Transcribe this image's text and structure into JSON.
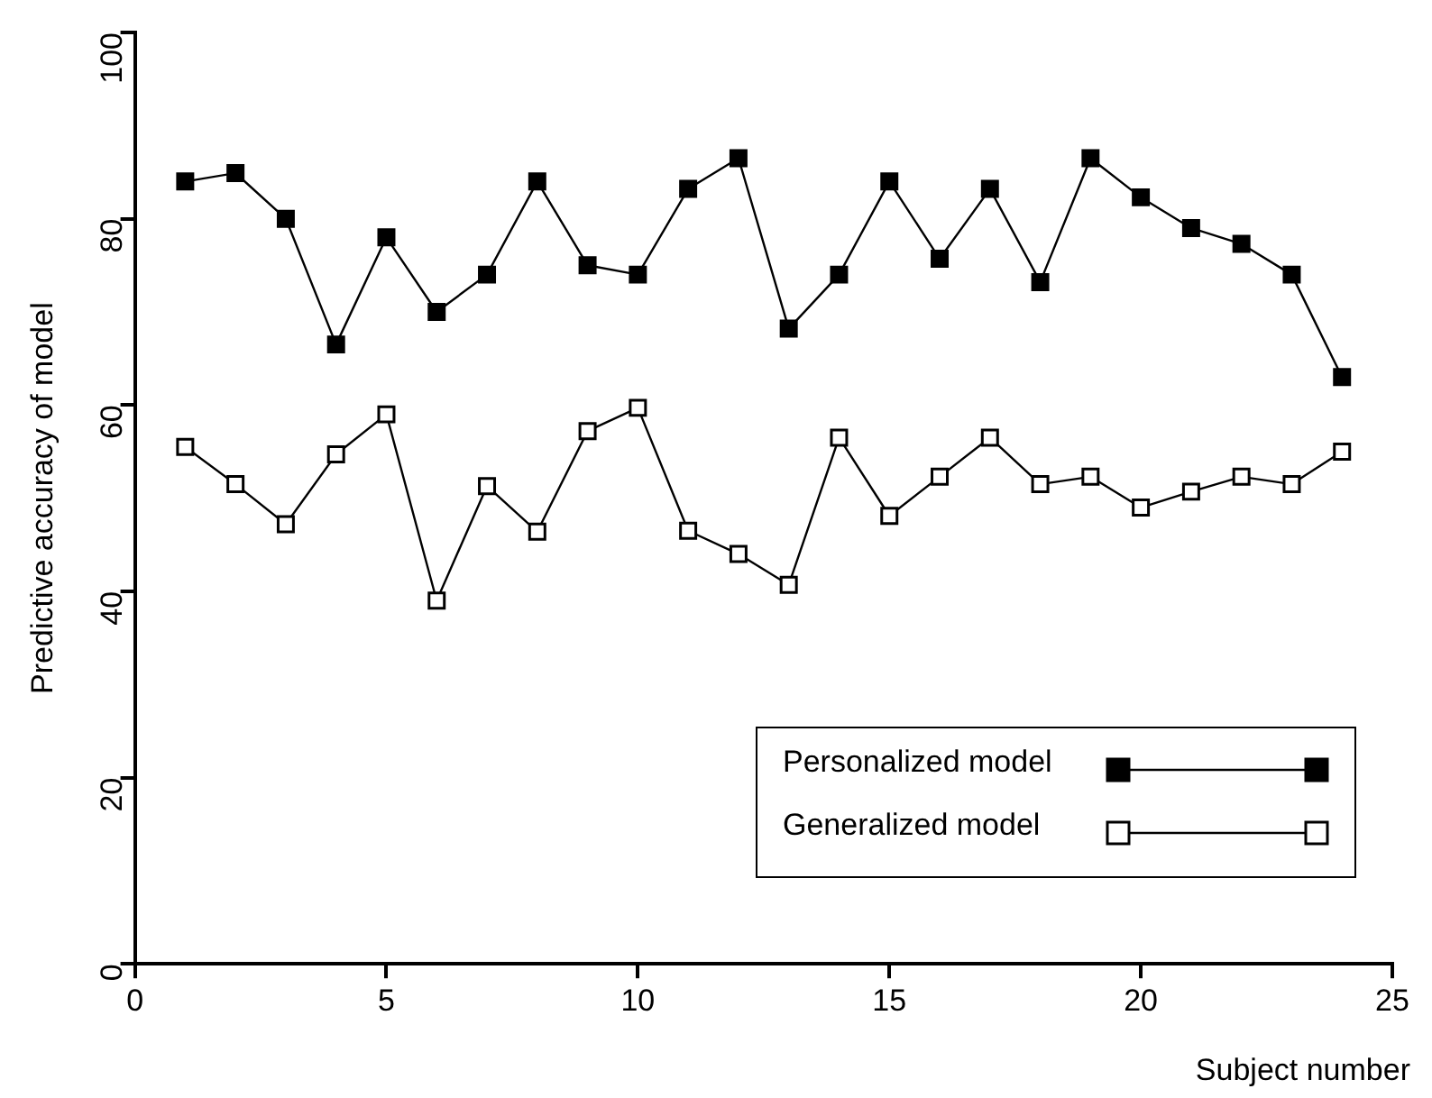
{
  "chart_data": {
    "type": "line",
    "xlabel": "Subject number",
    "ylabel": "Predictive accuracy of model",
    "x": [
      1,
      2,
      3,
      4,
      5,
      6,
      7,
      8,
      9,
      10,
      11,
      12,
      13,
      14,
      15,
      16,
      17,
      18,
      19,
      20,
      21,
      22,
      23,
      24
    ],
    "series": [
      {
        "name": "Personalized model",
        "color": "#000000",
        "marker": "square",
        "values": [
          84,
          84.9,
          80,
          66.5,
          78,
          70,
          74,
          84,
          75,
          74,
          83.2,
          86.5,
          68.2,
          74,
          84,
          75.7,
          83.2,
          73.2,
          86.5,
          82.3,
          79,
          77.3,
          74,
          63
        ]
      },
      {
        "name": "Generalized model",
        "color": "#ffffff",
        "marker": "square",
        "values": [
          55.5,
          51.5,
          47.2,
          54.7,
          59,
          39,
          51.3,
          46.4,
          57.2,
          59.7,
          46.5,
          44,
          40.7,
          56.5,
          48.1,
          52.3,
          56.5,
          51.5,
          52.3,
          49,
          50.7,
          52.3,
          51.5,
          55
        ]
      }
    ],
    "xlim": [
      0,
      25
    ],
    "xticks": [
      0,
      5,
      10,
      15,
      20,
      25
    ],
    "ylim": [
      0,
      100
    ],
    "yticks": [
      0,
      20,
      40,
      60,
      80,
      100
    ],
    "grid": false,
    "legend": "bottom right",
    "line_style": "solid"
  }
}
